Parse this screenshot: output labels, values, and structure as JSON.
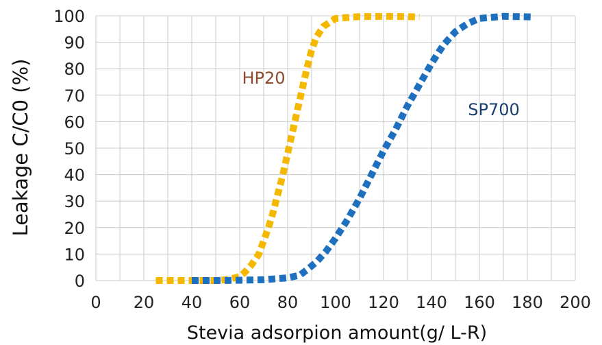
{
  "chart_data": {
    "type": "line",
    "title": "",
    "xlabel": "Stevia adsorpion amount(g/ L-R)",
    "ylabel": "Leakage C/C0 (%)",
    "xlim": [
      0,
      200
    ],
    "ylim": [
      0,
      100
    ],
    "x_ticks": [
      "0",
      "20",
      "40",
      "60",
      "80",
      "100",
      "120",
      "140",
      "160",
      "180",
      "200"
    ],
    "y_ticks": [
      "0",
      "10",
      "20",
      "30",
      "40",
      "50",
      "60",
      "70",
      "80",
      "90",
      "100"
    ],
    "grid": true,
    "legend": "none",
    "series": [
      {
        "name": "HP20",
        "color": "#f5b800",
        "label_color": "#8b4a2b",
        "x": [
          25,
          30,
          35,
          40,
          45,
          50,
          55,
          60,
          62,
          65,
          68,
          70,
          72,
          74,
          76,
          78,
          80,
          82,
          84,
          86,
          88,
          90,
          92,
          95,
          100,
          110,
          120,
          130,
          135
        ],
        "y": [
          0,
          0,
          0,
          0,
          0,
          0,
          0.3,
          1.5,
          3,
          6,
          10,
          15,
          20,
          26,
          33,
          40,
          48,
          56,
          64,
          72,
          80,
          87,
          92,
          96,
          99,
          99.7,
          99.8,
          99.7,
          99.5
        ]
      },
      {
        "name": "SP700",
        "color": "#1f6fbf",
        "label_color": "#1a3e6e",
        "x": [
          40,
          50,
          60,
          70,
          80,
          85,
          88,
          92,
          96,
          100,
          105,
          110,
          115,
          120,
          125,
          130,
          135,
          140,
          145,
          150,
          155,
          160,
          170,
          180,
          183
        ],
        "y": [
          0,
          0,
          0.1,
          0.3,
          1,
          2,
          4,
          7,
          11,
          16,
          23,
          31,
          40,
          49,
          57,
          66,
          74,
          82,
          89,
          94,
          97,
          99,
          99.8,
          99.6,
          99.5
        ]
      }
    ]
  }
}
